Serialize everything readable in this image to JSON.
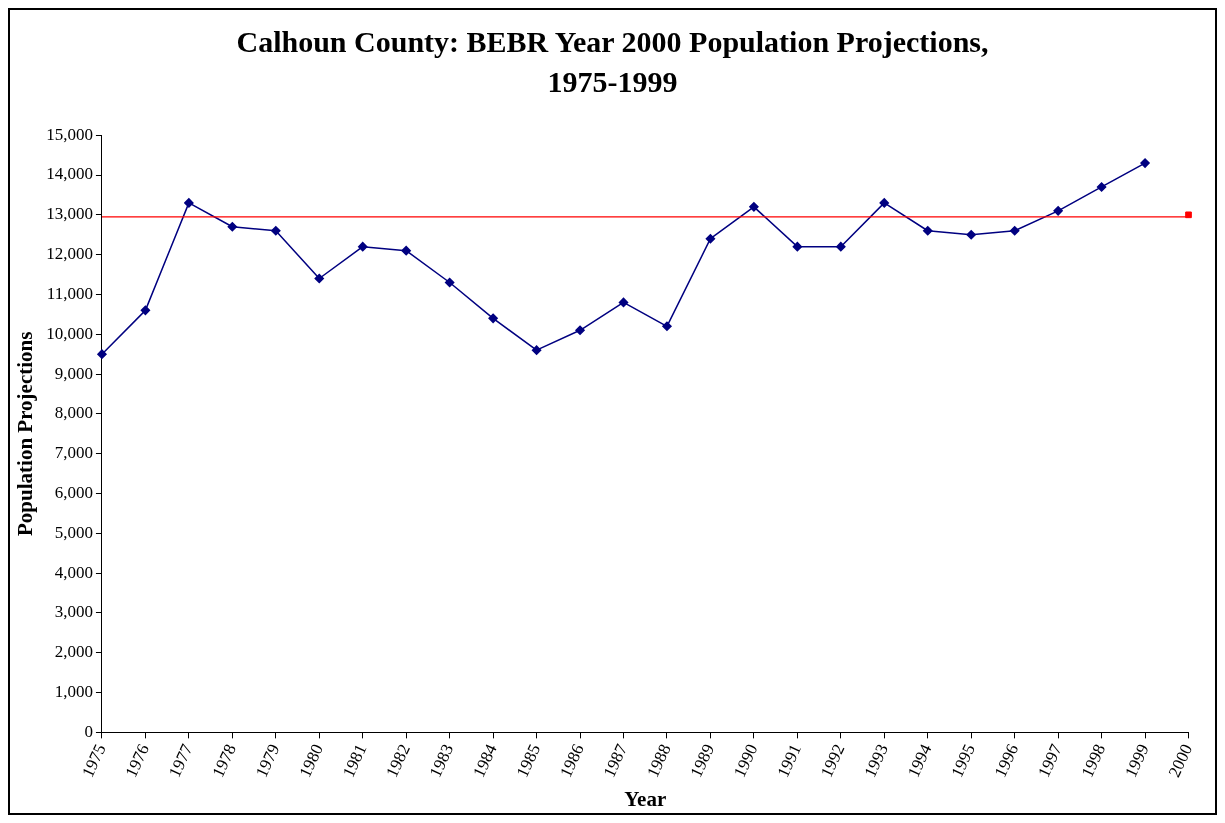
{
  "chart_data": {
    "type": "line",
    "title": "Calhoun County: BEBR Year 2000 Population Projections, 1975-1999",
    "xlabel": "Year",
    "ylabel": "Population Projections",
    "categories": [
      "1975",
      "1976",
      "1977",
      "1978",
      "1979",
      "1980",
      "1981",
      "1982",
      "1983",
      "1984",
      "1985",
      "1986",
      "1987",
      "1988",
      "1989",
      "1990",
      "1991",
      "1992",
      "1993",
      "1994",
      "1995",
      "1996",
      "1997",
      "1998",
      "1999",
      "2000"
    ],
    "series": [
      {
        "type": "line",
        "color": "#000080",
        "marker": "diamond",
        "values": [
          9500,
          10600,
          13300,
          12700,
          12600,
          11400,
          12200,
          12100,
          11300,
          10400,
          9600,
          10100,
          10800,
          10200,
          12400,
          13200,
          12200,
          12200,
          13300,
          12600,
          12500,
          12600,
          13100,
          13700,
          14300,
          null
        ]
      },
      {
        "type": "scatter",
        "color": "#ff0000",
        "marker": "square",
        "values": [
          null,
          null,
          null,
          null,
          null,
          null,
          null,
          null,
          null,
          null,
          null,
          null,
          null,
          null,
          null,
          null,
          null,
          null,
          null,
          null,
          null,
          null,
          null,
          null,
          null,
          13000
        ]
      }
    ],
    "ref_lines": [
      {
        "axis": "y",
        "value": 12950,
        "color": "#ff0000",
        "line_style": "solid"
      }
    ],
    "ylim": [
      0,
      15000
    ],
    "yticks": [
      {
        "value": 0,
        "label": "0"
      },
      {
        "value": 1000,
        "label": "1,000"
      },
      {
        "value": 2000,
        "label": "2,000"
      },
      {
        "value": 3000,
        "label": "3,000"
      },
      {
        "value": 4000,
        "label": "4,000"
      },
      {
        "value": 5000,
        "label": "5,000"
      },
      {
        "value": 6000,
        "label": "6,000"
      },
      {
        "value": 7000,
        "label": "7,000"
      },
      {
        "value": 8000,
        "label": "8,000"
      },
      {
        "value": 9000,
        "label": "9,000"
      },
      {
        "value": 10000,
        "label": "10,000"
      },
      {
        "value": 11000,
        "label": "11,000"
      },
      {
        "value": 12000,
        "label": "12,000"
      },
      {
        "value": 13000,
        "label": "13,000"
      },
      {
        "value": 14000,
        "label": "14,000"
      },
      {
        "value": 15000,
        "label": "15,000"
      }
    ],
    "grid": false,
    "legend": false,
    "line_style": "solid"
  }
}
